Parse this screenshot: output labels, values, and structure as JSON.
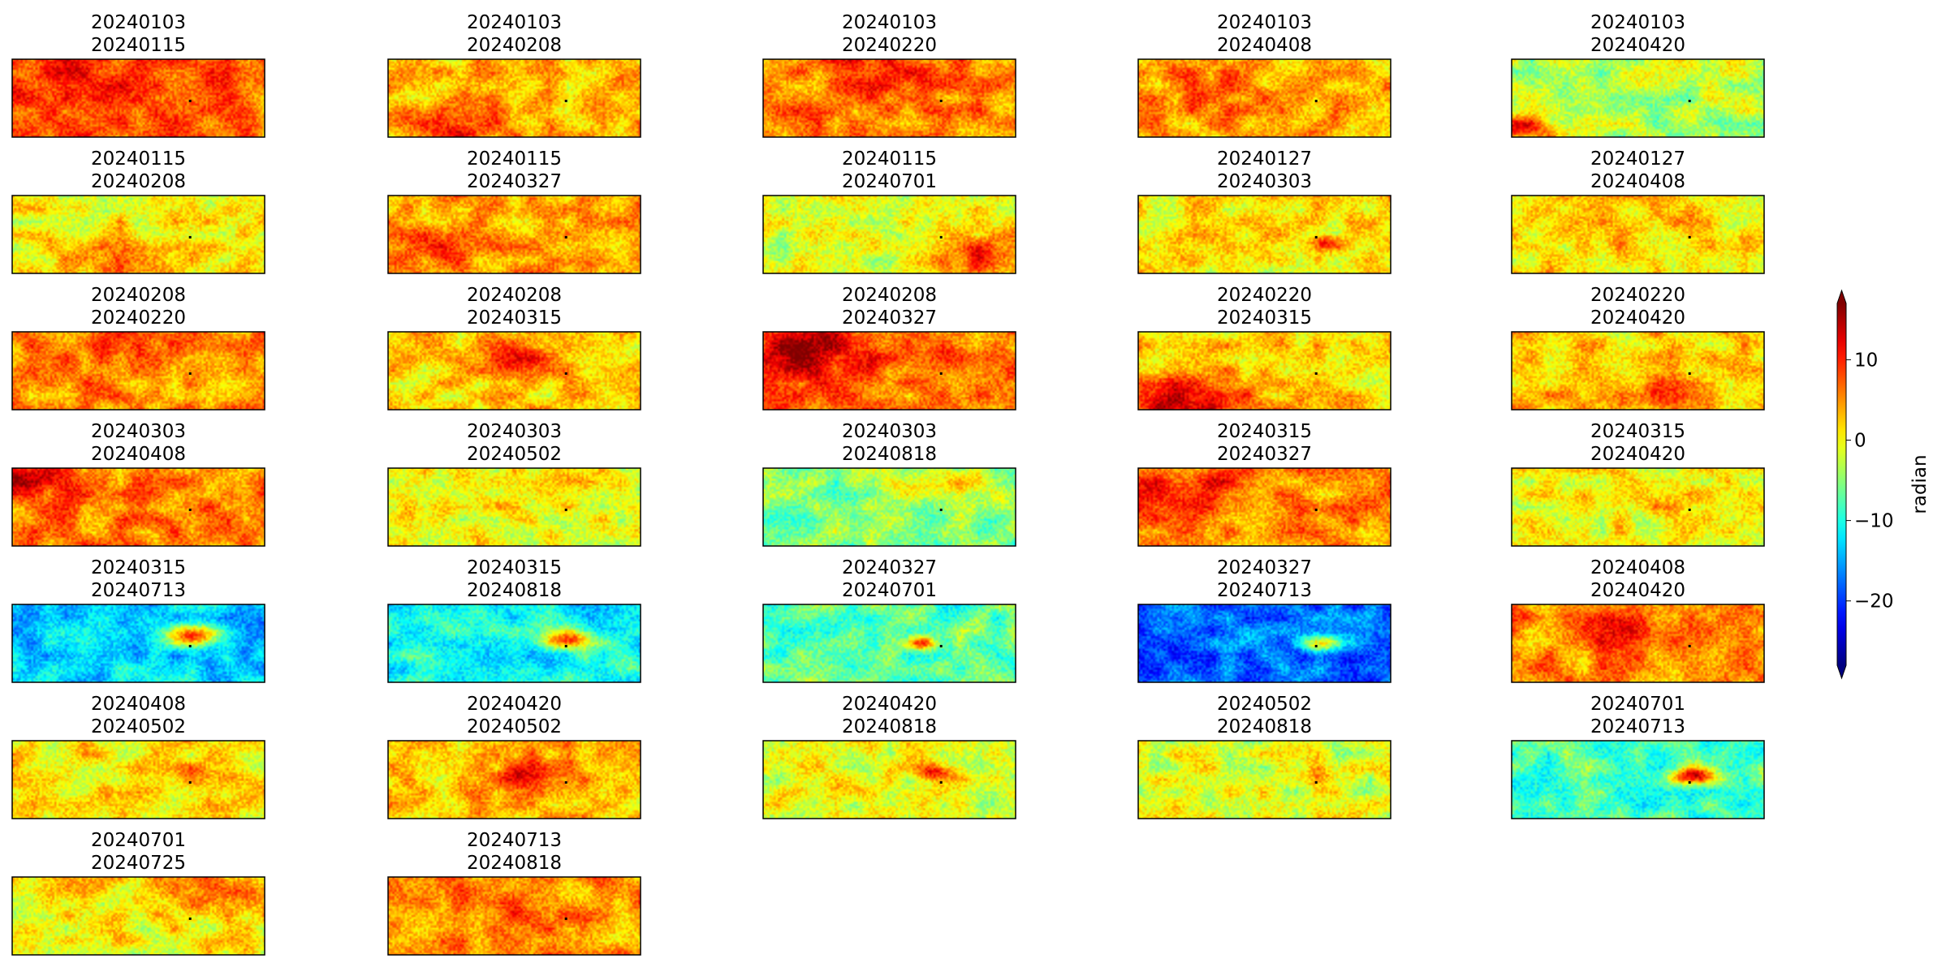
{
  "chart_data": {
    "type": "heatmap",
    "title": "",
    "panel_grid": {
      "rows": 7,
      "cols": 5
    },
    "panels": [
      {
        "date1": "20240103",
        "date2": "20240115",
        "pattern": "warm",
        "bias": 7,
        "hot": [
          {
            "cx": 0.25,
            "cy": 0.4,
            "r": 0.35,
            "amp": 4
          }
        ]
      },
      {
        "date1": "20240103",
        "date2": "20240208",
        "pattern": "warm",
        "bias": 3,
        "hot": [
          {
            "cx": 0.3,
            "cy": 0.9,
            "r": 0.25,
            "amp": 8
          }
        ]
      },
      {
        "date1": "20240103",
        "date2": "20240220",
        "pattern": "warm",
        "bias": 6,
        "hot": [
          {
            "cx": 0.5,
            "cy": 0.15,
            "r": 0.3,
            "amp": 4
          }
        ]
      },
      {
        "date1": "20240103",
        "date2": "20240408",
        "pattern": "warm",
        "bias": 4,
        "hot": [
          {
            "cx": 0.3,
            "cy": 0.4,
            "r": 0.25,
            "amp": 5
          }
        ]
      },
      {
        "date1": "20240103",
        "date2": "20240420",
        "pattern": "cool",
        "bias": -3,
        "hot": [
          {
            "cx": 0.05,
            "cy": 0.9,
            "r": 0.15,
            "amp": 14
          }
        ]
      },
      {
        "date1": "20240115",
        "date2": "20240208",
        "pattern": "mix",
        "bias": 0,
        "hot": [
          {
            "cx": 0.5,
            "cy": 0.95,
            "r": 0.4,
            "amp": 5
          }
        ]
      },
      {
        "date1": "20240115",
        "date2": "20240327",
        "pattern": "warm",
        "bias": 4,
        "hot": [
          {
            "cx": 0.2,
            "cy": 0.7,
            "r": 0.2,
            "amp": 5
          }
        ]
      },
      {
        "date1": "20240115",
        "date2": "20240701",
        "pattern": "mix",
        "bias": -1,
        "hot": [
          {
            "cx": 0.9,
            "cy": 0.8,
            "r": 0.25,
            "amp": 12
          }
        ]
      },
      {
        "date1": "20240127",
        "date2": "20240303",
        "pattern": "mix",
        "bias": 1,
        "hot": [
          {
            "cx": 0.75,
            "cy": 0.6,
            "r": 0.08,
            "amp": 10
          }
        ]
      },
      {
        "date1": "20240127",
        "date2": "20240408",
        "pattern": "mix",
        "bias": 1,
        "hot": [
          {
            "cx": 0.5,
            "cy": 0.5,
            "r": 0.3,
            "amp": 2
          }
        ]
      },
      {
        "date1": "20240208",
        "date2": "20240220",
        "pattern": "warm",
        "bias": 5,
        "hot": [
          {
            "cx": 0.5,
            "cy": 0.1,
            "r": 0.4,
            "amp": 3
          }
        ]
      },
      {
        "date1": "20240208",
        "date2": "20240315",
        "pattern": "mix",
        "bias": 2,
        "hot": [
          {
            "cx": 0.55,
            "cy": 0.35,
            "r": 0.25,
            "amp": 7
          }
        ]
      },
      {
        "date1": "20240208",
        "date2": "20240327",
        "pattern": "warm",
        "bias": 6,
        "hot": [
          {
            "cx": 0.15,
            "cy": 0.25,
            "r": 0.35,
            "amp": 9
          }
        ]
      },
      {
        "date1": "20240220",
        "date2": "20240315",
        "pattern": "mix",
        "bias": 2,
        "hot": [
          {
            "cx": 0.2,
            "cy": 0.95,
            "r": 0.35,
            "amp": 12
          }
        ]
      },
      {
        "date1": "20240220",
        "date2": "20240420",
        "pattern": "mix",
        "bias": 2,
        "hot": [
          {
            "cx": 0.5,
            "cy": 0.95,
            "r": 0.4,
            "amp": 5
          }
        ]
      },
      {
        "date1": "20240303",
        "date2": "20240408",
        "pattern": "warm",
        "bias": 6,
        "hot": [
          {
            "cx": 0.05,
            "cy": 0.1,
            "r": 0.2,
            "amp": 9
          }
        ]
      },
      {
        "date1": "20240303",
        "date2": "20240502",
        "pattern": "mix",
        "bias": 0,
        "hot": [
          {
            "cx": 0.6,
            "cy": 0.3,
            "r": 0.2,
            "amp": 3
          }
        ]
      },
      {
        "date1": "20240303",
        "date2": "20240818",
        "pattern": "cool",
        "bias": -5,
        "hot": [
          {
            "cx": 0.7,
            "cy": 0.2,
            "r": 0.2,
            "amp": 9
          }
        ]
      },
      {
        "date1": "20240315",
        "date2": "20240327",
        "pattern": "warm",
        "bias": 5,
        "hot": [
          {
            "cx": 0.2,
            "cy": 0.3,
            "r": 0.3,
            "amp": 6
          }
        ]
      },
      {
        "date1": "20240315",
        "date2": "20240420",
        "pattern": "mix",
        "bias": 0,
        "hot": [
          {
            "cx": 0.6,
            "cy": 0.5,
            "r": 0.2,
            "amp": 3
          }
        ]
      },
      {
        "date1": "20240315",
        "date2": "20240713",
        "pattern": "cold",
        "bias": -13,
        "hot": [
          {
            "cx": 0.72,
            "cy": 0.4,
            "r": 0.12,
            "amp": 20
          }
        ]
      },
      {
        "date1": "20240315",
        "date2": "20240818",
        "pattern": "cold",
        "bias": -11,
        "hot": [
          {
            "cx": 0.72,
            "cy": 0.45,
            "r": 0.12,
            "amp": 18
          }
        ]
      },
      {
        "date1": "20240327",
        "date2": "20240701",
        "pattern": "cool",
        "bias": -7,
        "hot": [
          {
            "cx": 0.62,
            "cy": 0.5,
            "r": 0.08,
            "amp": 14
          }
        ]
      },
      {
        "date1": "20240327",
        "date2": "20240713",
        "pattern": "cold",
        "bias": -18,
        "hot": [
          {
            "cx": 0.72,
            "cy": 0.5,
            "r": 0.1,
            "amp": 22
          }
        ]
      },
      {
        "date1": "20240408",
        "date2": "20240420",
        "pattern": "warm",
        "bias": 5,
        "hot": [
          {
            "cx": 0.4,
            "cy": 0.3,
            "r": 0.2,
            "amp": 6
          }
        ]
      },
      {
        "date1": "20240408",
        "date2": "20240502",
        "pattern": "mix",
        "bias": 1,
        "hot": [
          {
            "cx": 0.72,
            "cy": 0.45,
            "r": 0.15,
            "amp": 6
          }
        ]
      },
      {
        "date1": "20240420",
        "date2": "20240502",
        "pattern": "warm",
        "bias": 3,
        "hot": [
          {
            "cx": 0.55,
            "cy": 0.45,
            "r": 0.2,
            "amp": 6
          }
        ]
      },
      {
        "date1": "20240420",
        "date2": "20240818",
        "pattern": "mix",
        "bias": -1,
        "hot": [
          {
            "cx": 0.68,
            "cy": 0.4,
            "r": 0.1,
            "amp": 12
          }
        ]
      },
      {
        "date1": "20240502",
        "date2": "20240818",
        "pattern": "mix",
        "bias": -1,
        "hot": [
          {
            "cx": 0.72,
            "cy": 0.45,
            "r": 0.12,
            "amp": 6
          }
        ]
      },
      {
        "date1": "20240701",
        "date2": "20240713",
        "pattern": "cool",
        "bias": -8,
        "hot": [
          {
            "cx": 0.72,
            "cy": 0.45,
            "r": 0.1,
            "amp": 22
          }
        ]
      },
      {
        "date1": "20240701",
        "date2": "20240725",
        "pattern": "mix",
        "bias": 0,
        "hot": [
          {
            "cx": 0.75,
            "cy": 0.1,
            "r": 0.3,
            "amp": 8
          }
        ]
      },
      {
        "date1": "20240713",
        "date2": "20240818",
        "pattern": "warm",
        "bias": 5,
        "hot": [
          {
            "cx": 0.5,
            "cy": 0.5,
            "r": 0.3,
            "amp": 2
          }
        ]
      }
    ],
    "colorbar": {
      "label": "radian",
      "colormap": "jet",
      "vmin": -28,
      "vmax": 17,
      "ticks": [
        -20,
        -10,
        0,
        10
      ],
      "tick_labels": [
        "−20",
        "−10",
        "0",
        "10"
      ],
      "extend": "both"
    }
  }
}
